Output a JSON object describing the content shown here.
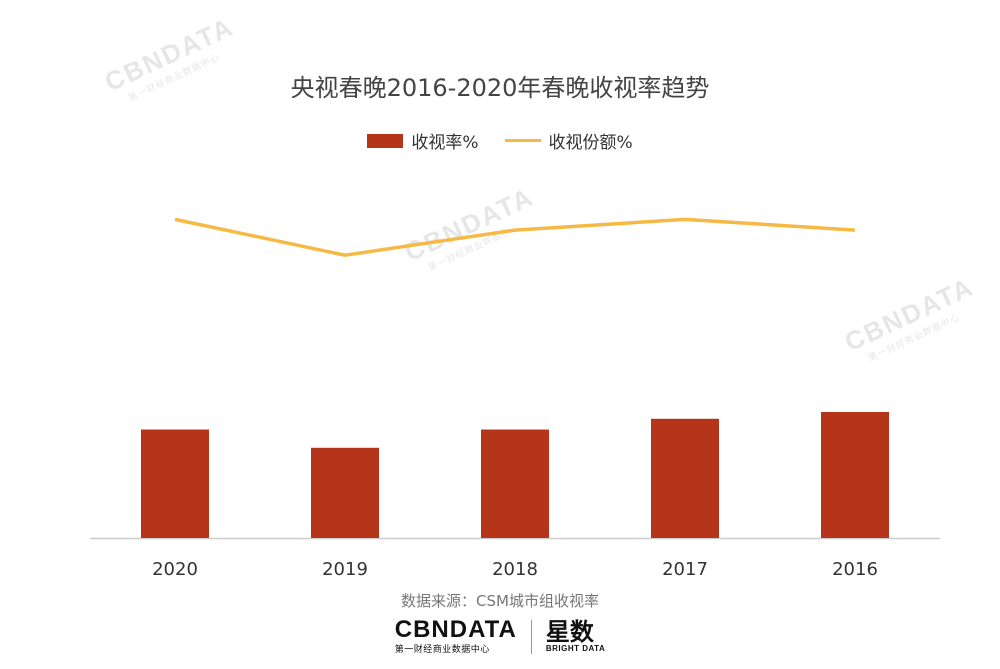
{
  "watermark": {
    "brand": "CBNDATA",
    "tagline": "第一财经商业数据中心"
  },
  "source_note": "数据来源：CSM城市组收视率",
  "footer": {
    "cbn_logo": "CBNDATA",
    "cbn_tagline": "第一财经商业数据中心",
    "xs_logo": "星数",
    "xs_tagline": "BRIGHT DATA"
  },
  "colors": {
    "bar": "#b5351a",
    "line": "#f5b944",
    "axis": "#cccccc"
  },
  "chart_data": {
    "type": "bar",
    "title": "央视春晚2016-2020年春晚收视率趋势",
    "categories": [
      "2020",
      "2019",
      "2018",
      "2017",
      "2016"
    ],
    "series": [
      {
        "name": "收视率%",
        "type": "bar",
        "values": [
          30.3,
          25.2,
          30.3,
          33.3,
          35.2
        ]
      },
      {
        "name": "收视份额%",
        "type": "line",
        "values": [
          89.0,
          79.0,
          86.0,
          89.0,
          86.0
        ]
      }
    ],
    "legend": "top-center",
    "grid": false
  }
}
